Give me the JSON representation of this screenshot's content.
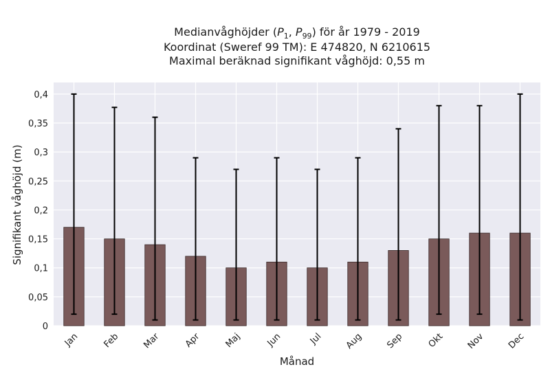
{
  "chart_data": {
    "type": "bar",
    "title_lines": [
      "Medianvåghöjder (P1, P99) för år 1979 - 2019",
      "Koordinat (Sweref 99 TM): E 474820, N 6210615",
      "Maximal beräknad signifikant våghöjd: 0,55 m"
    ],
    "xlabel": "Månad",
    "ylabel": "Signifikant våghöjd (m)",
    "categories": [
      "Jan",
      "Feb",
      "Mar",
      "Apr",
      "Maj",
      "Jun",
      "Jul",
      "Aug",
      "Sep",
      "Okt",
      "Nov",
      "Dec"
    ],
    "series": [
      {
        "values": [
          0.17,
          0.15,
          0.14,
          0.12,
          0.1,
          0.11,
          0.1,
          0.11,
          0.13,
          0.15,
          0.16,
          0.16
        ],
        "p1": [
          0.02,
          0.02,
          0.01,
          0.01,
          0.01,
          0.01,
          0.01,
          0.01,
          0.01,
          0.02,
          0.02,
          0.01
        ],
        "p99": [
          0.4,
          0.377,
          0.36,
          0.29,
          0.27,
          0.29,
          0.27,
          0.29,
          0.34,
          0.38,
          0.38,
          0.4
        ]
      }
    ],
    "ylim": [
      0,
      0.42
    ],
    "yticks": [
      0,
      0.05,
      0.1,
      0.15,
      0.2,
      0.25,
      0.3,
      0.35,
      0.4
    ],
    "ytick_labels": [
      "0",
      "0,05",
      "0,1",
      "0,15",
      "0,2",
      "0,25",
      "0,3",
      "0,35",
      "0,4"
    ],
    "grid": true,
    "colors": {
      "bar": "#7a5a5a",
      "bar_edge": "#3a2a2a",
      "error": "#000000",
      "plot_bg": "#eaeaf2",
      "grid": "#ffffff"
    }
  }
}
